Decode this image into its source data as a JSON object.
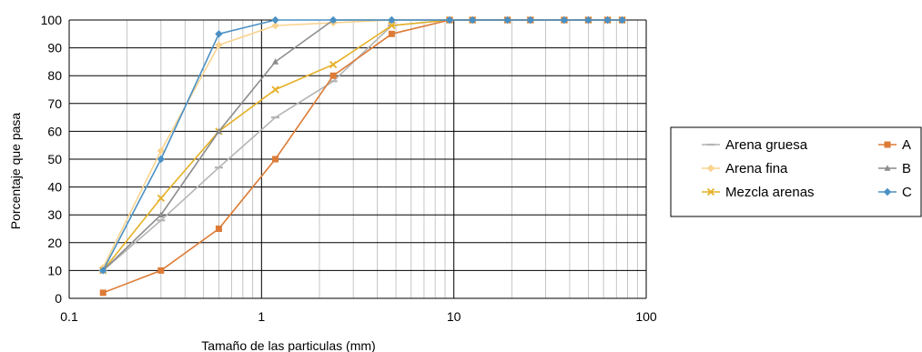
{
  "chart_data": {
    "type": "line",
    "x_scale": "log",
    "xlabel": "Tamaño de las particulas (mm)",
    "ylabel": "Porcentaje que pasa",
    "xlim": [
      0.1,
      100
    ],
    "ylim": [
      0,
      100
    ],
    "x_ticks": [
      "0.1",
      "1",
      "10",
      "100"
    ],
    "y_ticks": [
      "0",
      "10",
      "20",
      "30",
      "40",
      "50",
      "60",
      "70",
      "80",
      "90",
      "100"
    ],
    "grid": true,
    "legend_position": "right",
    "series": [
      {
        "name": "Arena gruesa",
        "color": "#b4b4b4",
        "marker": "dash",
        "x": [
          0.15,
          0.3,
          0.6,
          1.18,
          2.36,
          4.75,
          9.5,
          12.5,
          19,
          25,
          37.5,
          50,
          63,
          75
        ],
        "y": [
          10,
          28,
          47,
          65,
          78,
          98,
          100,
          100,
          100,
          100,
          100,
          100,
          100,
          100
        ]
      },
      {
        "name": "Arena fina",
        "color": "#f9d38f",
        "marker": "diamond",
        "x": [
          0.15,
          0.3,
          0.6,
          1.18,
          2.36,
          4.75,
          9.5,
          12.5,
          19,
          25,
          37.5,
          50,
          63,
          75
        ],
        "y": [
          11,
          53,
          91,
          98,
          99,
          100,
          100,
          100,
          100,
          100,
          100,
          100,
          100,
          100
        ]
      },
      {
        "name": "Mezcla arenas",
        "color": "#e5b025",
        "marker": "x",
        "x": [
          0.15,
          0.3,
          0.6,
          1.18,
          2.36,
          4.75,
          9.5,
          12.5,
          19,
          25,
          37.5,
          50,
          63,
          75
        ],
        "y": [
          10,
          36,
          60,
          75,
          84,
          98,
          100,
          100,
          100,
          100,
          100,
          100,
          100,
          100
        ]
      },
      {
        "name": "A",
        "color": "#dd7b36",
        "marker": "square",
        "x": [
          0.15,
          0.3,
          0.6,
          1.18,
          2.36,
          4.75,
          9.5,
          12.5,
          19,
          25,
          37.5,
          50,
          63,
          75
        ],
        "y": [
          2,
          10,
          25,
          50,
          80,
          95,
          100,
          100,
          100,
          100,
          100,
          100,
          100,
          100
        ]
      },
      {
        "name": "B",
        "color": "#8c8c8c",
        "marker": "triangle",
        "x": [
          0.15,
          0.3,
          0.6,
          1.18,
          2.36,
          4.75,
          9.5,
          12.5,
          19,
          25,
          37.5,
          50,
          63,
          75
        ],
        "y": [
          10,
          30,
          60,
          85,
          100,
          100,
          100,
          100,
          100,
          100,
          100,
          100,
          100,
          100
        ]
      },
      {
        "name": "C",
        "color": "#4a90c4",
        "marker": "diamond",
        "x": [
          0.15,
          0.3,
          0.6,
          1.18,
          2.36,
          4.75,
          9.5,
          12.5,
          19,
          25,
          37.5,
          50,
          63,
          75
        ],
        "y": [
          10,
          50,
          95,
          100,
          100,
          100,
          100,
          100,
          100,
          100,
          100,
          100,
          100,
          100
        ]
      }
    ]
  }
}
